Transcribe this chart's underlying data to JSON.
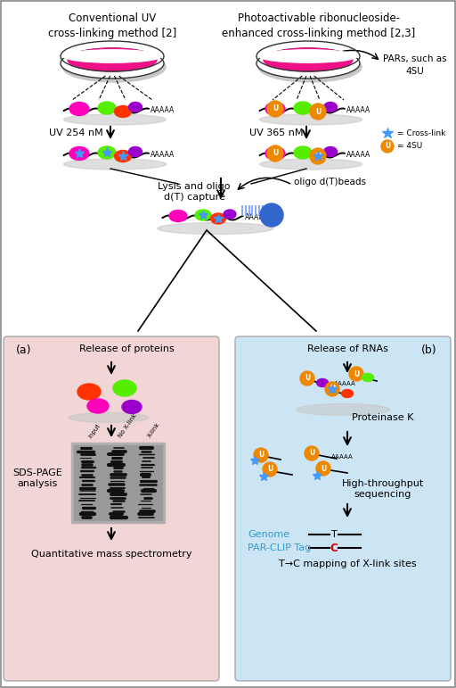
{
  "bg_color": "#ffffff",
  "panel_a_color": "#f2d5d5",
  "panel_b_color": "#cce5f5",
  "title_left": "Conventional UV\ncross-linking method [2]",
  "title_right": "Photoactivable ribonucleoside-\nenhanced cross-linking method [2,3]",
  "label_pars": "PARs, such as\n4SU",
  "label_uv254": "UV 254 nM",
  "label_uv365": "UV 365 nM",
  "label_crosslink_legend": "= Cross-link",
  "label_4su_legend": "= 4SU",
  "label_lysis": "Lysis and oligo\nd(T) capture",
  "label_oligo_beads": "oligo d(T)beads",
  "label_release_proteins": "Release of proteins",
  "label_release_rnas": "Release of RNAs",
  "label_panel_a": "(a)",
  "label_panel_b": "(b)",
  "label_sdspage": "SDS-PAGE\nanalysis",
  "label_proteinase": "Proteinase K",
  "label_hts": "High-throughput\nsequencing",
  "label_qms": "Quantitative mass spectrometry",
  "label_tc": "T→C mapping of X-link sites",
  "label_genome": "Genome",
  "label_parclip": "PAR-CLIP Tag",
  "gel_label_input": "Input",
  "gel_label_noxlink": "No X-link",
  "gel_label_xlink": "X-link",
  "color_magenta": "#ff00bb",
  "color_green": "#55ee00",
  "color_orange_red": "#ff3300",
  "color_purple": "#9900cc",
  "color_orange": "#ee8800",
  "color_blue_star": "#4499ff",
  "color_cyan_blue": "#3399cc",
  "color_red_c": "#cc0000",
  "color_bead_blue": "#3366cc",
  "color_oligo_blue": "#88aaff",
  "color_shadow": "#c8c8c8"
}
